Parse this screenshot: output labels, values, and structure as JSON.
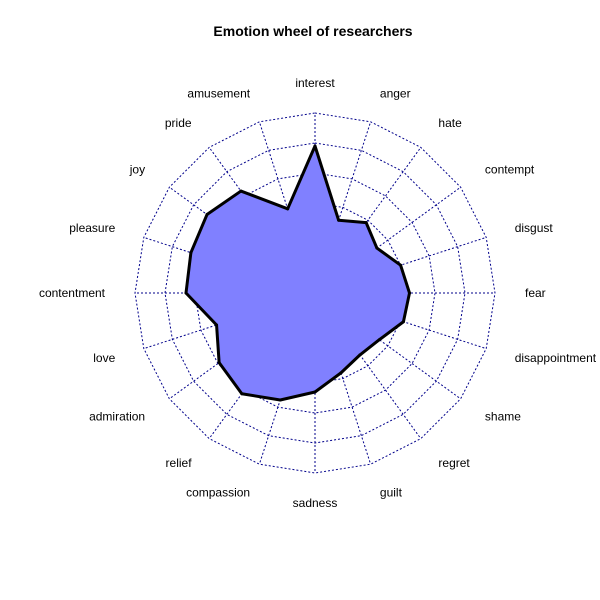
{
  "chart_data": {
    "type": "radar",
    "title": "Emotion wheel of researchers",
    "categories": [
      "interest",
      "anger",
      "hate",
      "contempt",
      "disgust",
      "fear",
      "disappointment",
      "shame",
      "regret",
      "guilt",
      "sadness",
      "compassion",
      "relief",
      "admiration",
      "love",
      "contentment",
      "pleasure",
      "joy",
      "pride",
      "amusement"
    ],
    "values": [
      0.78,
      0.31,
      0.38,
      0.31,
      0.4,
      0.43,
      0.42,
      0.33,
      0.31,
      0.36,
      0.46,
      0.55,
      0.63,
      0.59,
      0.49,
      0.66,
      0.67,
      0.69,
      0.64,
      0.39
    ],
    "rlim": [
      -0.2,
      1.0
    ],
    "ring_count": 6,
    "grid": true,
    "colors": {
      "fill": "#8080ff",
      "outline": "#000000",
      "grid": "#00008b"
    }
  }
}
